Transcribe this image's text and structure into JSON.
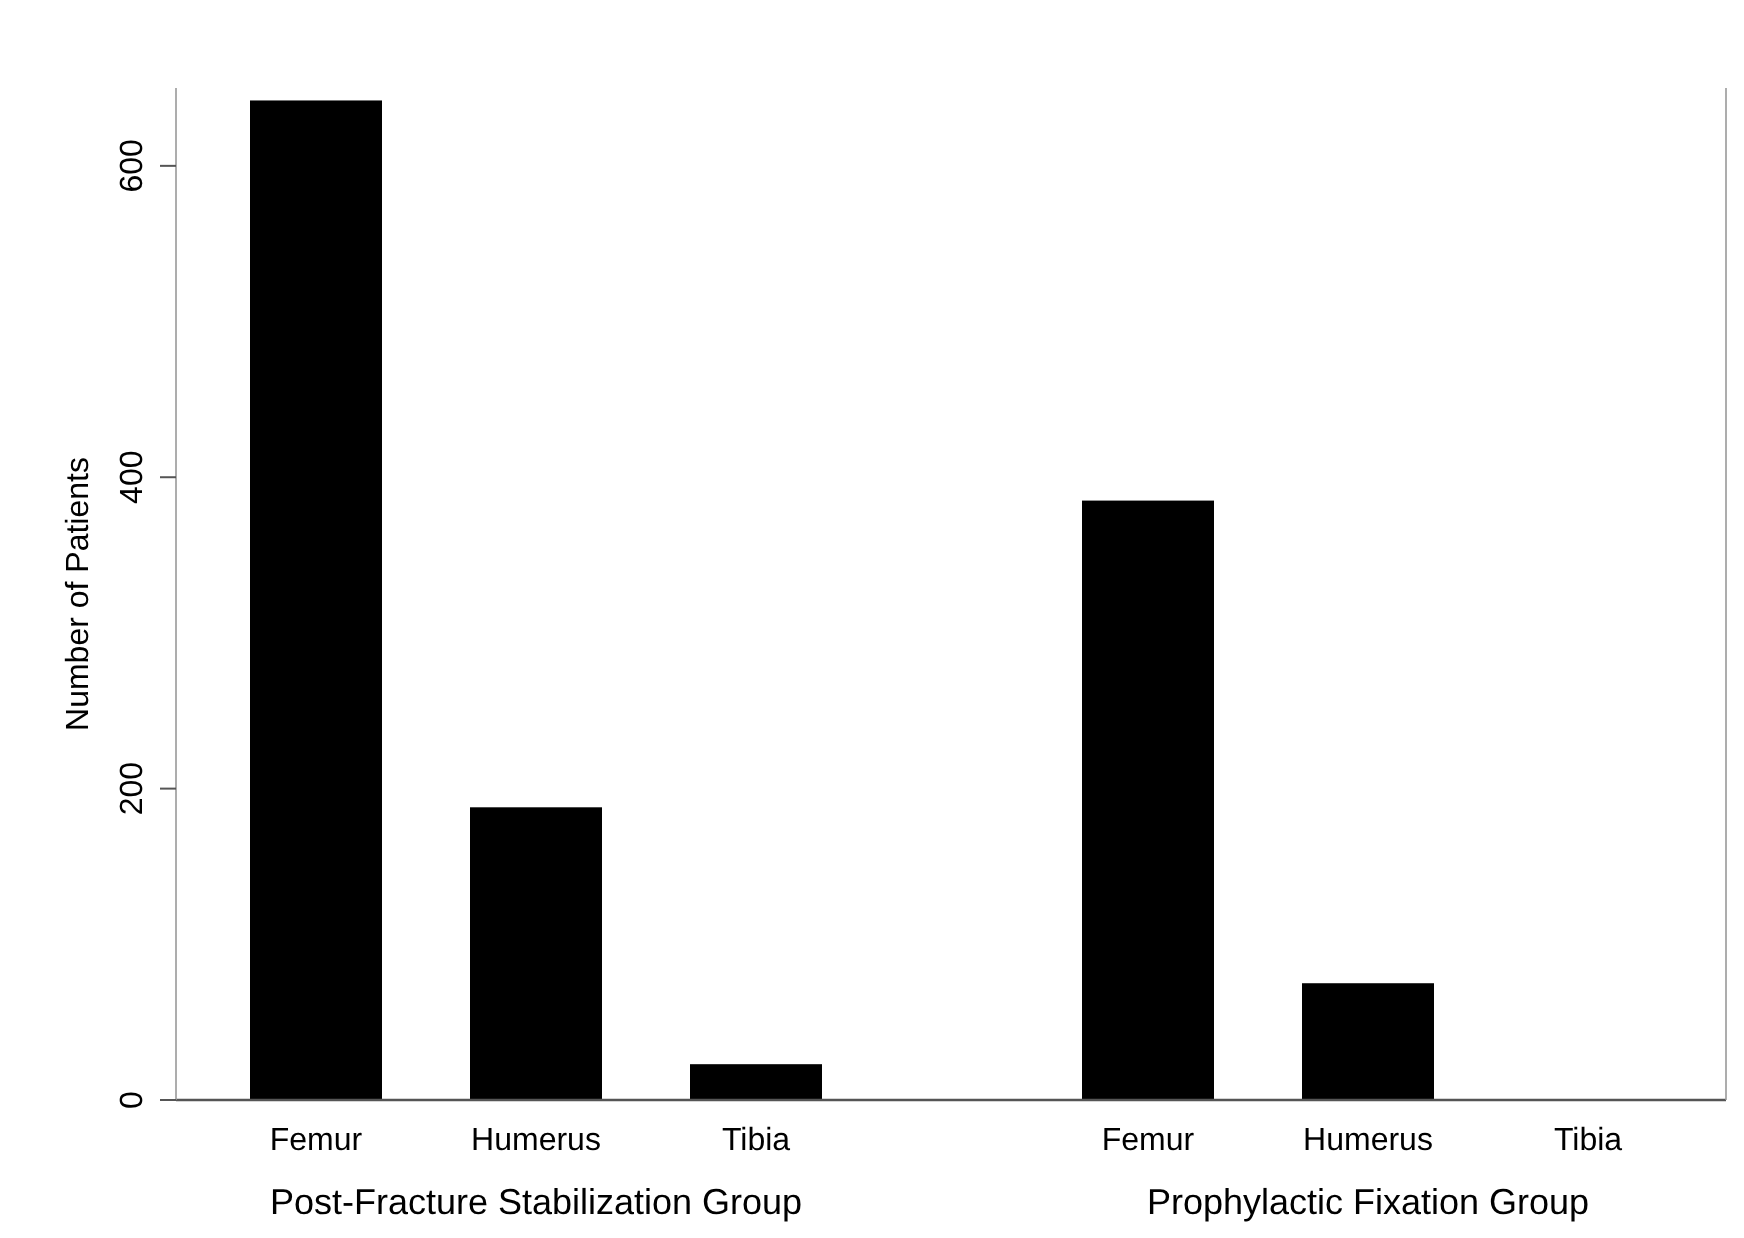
{
  "chart_data": [
    {
      "type": "bar",
      "xlabel": "Post-Fracture Stabilization Group",
      "ylabel": "Number of Patients",
      "categories": [
        "Femur",
        "Humerus",
        "Tibia"
      ],
      "values": [
        642,
        188,
        23
      ],
      "color": "#000000",
      "ylim": [
        0,
        650
      ],
      "yticks": [
        0,
        200,
        400,
        600
      ],
      "grid": false
    },
    {
      "type": "bar",
      "xlabel": "Prophylactic Fixation Group",
      "categories": [
        "Femur",
        "Humerus",
        "Tibia"
      ],
      "values": [
        385,
        75,
        0
      ],
      "color": "#000000",
      "ylim": [
        0,
        650
      ],
      "yticks": [
        0,
        200,
        400,
        600
      ],
      "tick_labels": "x",
      "grid": false
    }
  ]
}
